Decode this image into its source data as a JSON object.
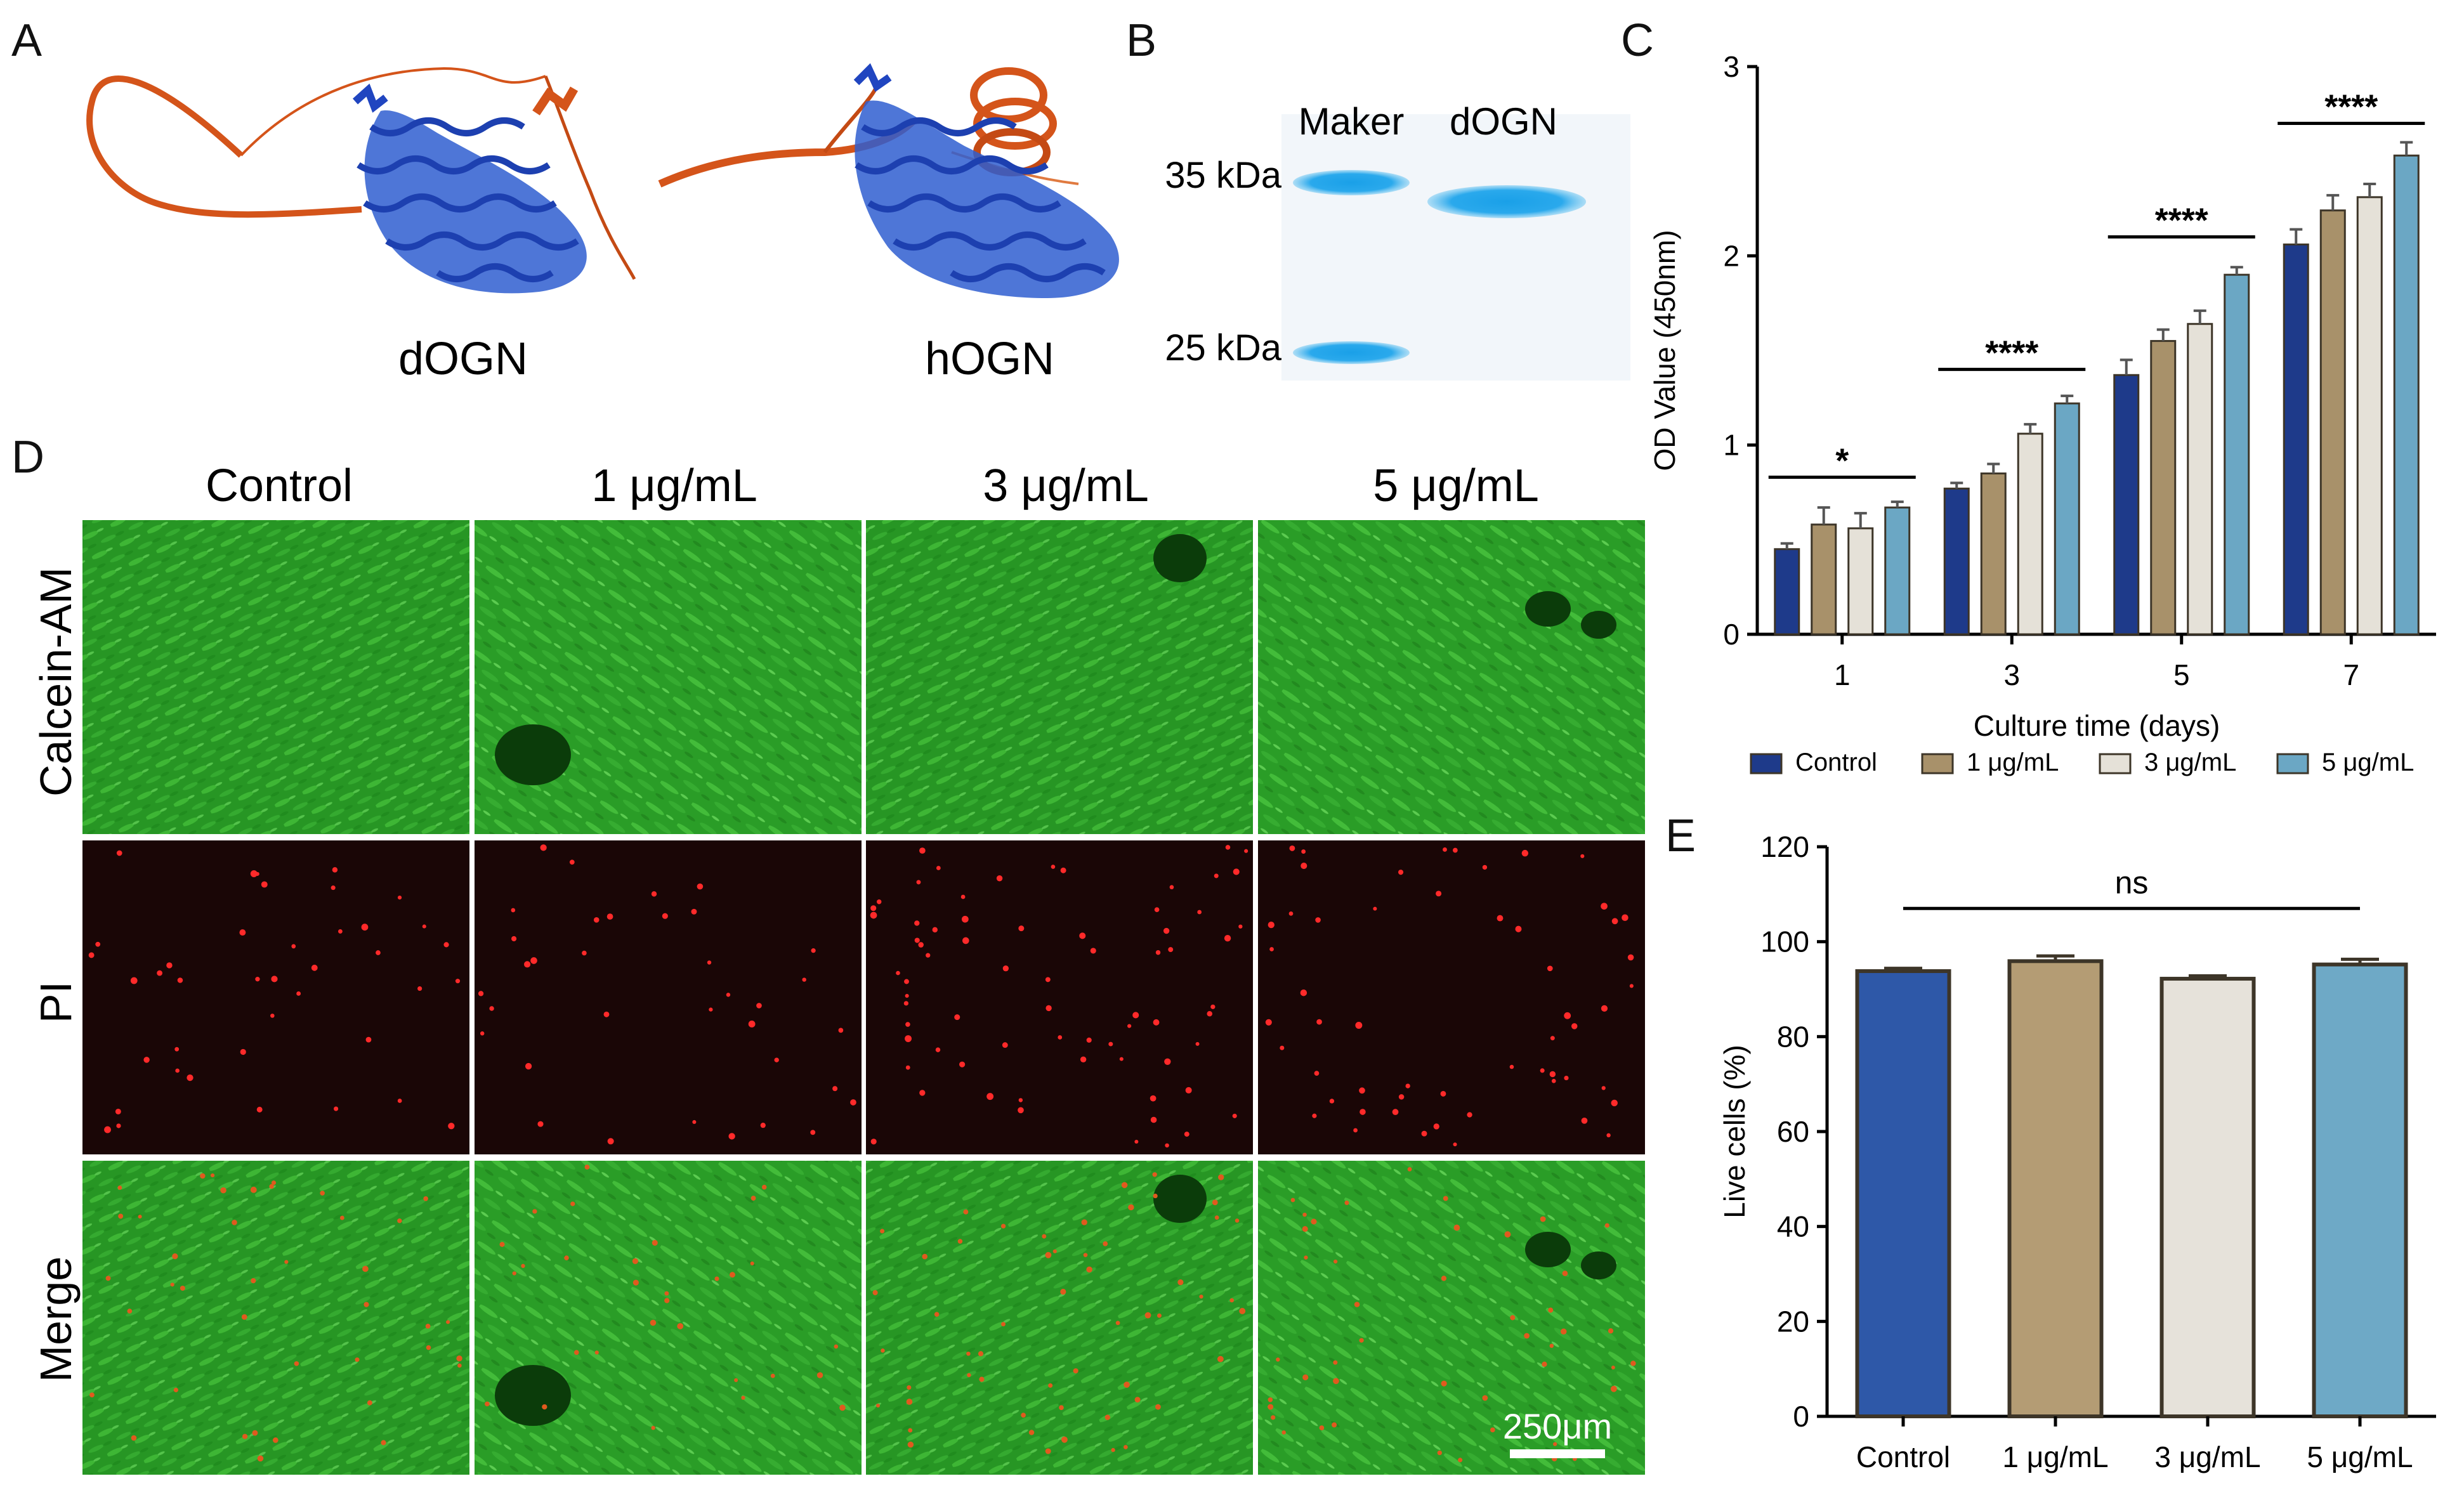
{
  "panels": {
    "A": "A",
    "B": "B",
    "C": "C",
    "D": "D",
    "E": "E"
  },
  "protein_a": {
    "labels": [
      "dOGN",
      "hOGN"
    ]
  },
  "gel_b": {
    "lanes": [
      "Maker",
      "dOGN"
    ],
    "markers": [
      "35 kDa",
      "25 kDa"
    ]
  },
  "micro_d": {
    "columns": [
      "Control",
      "1 μg/mL",
      "3 μg/mL",
      "5 μg/mL"
    ],
    "rows": [
      "Calcein-AM",
      "PI",
      "Merge"
    ],
    "scale_bar": "250μm",
    "colors": {
      "calcein": "#2db82b",
      "pi_bg": "#1a0606",
      "pi_dot": "#ff2a2a"
    }
  },
  "chart_data": [
    {
      "type": "bar",
      "title": "",
      "xlabel": "Culture time (days)",
      "ylabel": "OD Value (450nm)",
      "ylim": [
        0,
        3
      ],
      "yticks": [
        "0",
        "1",
        "2",
        "3"
      ],
      "categories": [
        "1",
        "3",
        "5",
        "7"
      ],
      "series": [
        {
          "name": "Control",
          "color": "#1e3a8a",
          "values": [
            0.45,
            0.77,
            1.37,
            2.06
          ],
          "errors": [
            0.03,
            0.03,
            0.08,
            0.08
          ]
        },
        {
          "name": "1 μg/mL",
          "color": "#a8916a",
          "values": [
            0.58,
            0.85,
            1.55,
            2.24
          ],
          "errors": [
            0.09,
            0.05,
            0.06,
            0.08
          ]
        },
        {
          "name": "3 μg/mL",
          "color": "#e5e1d8",
          "values": [
            0.56,
            1.06,
            1.64,
            2.31
          ],
          "errors": [
            0.08,
            0.05,
            0.07,
            0.07
          ]
        },
        {
          "name": "5 μg/mL",
          "color": "#6ba7c4",
          "values": [
            0.67,
            1.22,
            1.9,
            2.53
          ],
          "errors": [
            0.03,
            0.04,
            0.04,
            0.07
          ]
        }
      ],
      "significance": [
        {
          "group": "1",
          "label": "*",
          "y": 0.83
        },
        {
          "group": "3",
          "label": "****",
          "y": 1.4
        },
        {
          "group": "5",
          "label": "****",
          "y": 2.1
        },
        {
          "group": "7",
          "label": "****",
          "y": 2.7
        }
      ],
      "legend": "bottom"
    },
    {
      "type": "bar",
      "title": "",
      "xlabel": "",
      "ylabel": "Live cells (%)",
      "ylim": [
        0,
        120
      ],
      "yticks": [
        "0",
        "20",
        "40",
        "60",
        "80",
        "100",
        "120"
      ],
      "categories": [
        "Control",
        "1 μg/mL",
        "3 μg/mL",
        "5 μg/mL"
      ],
      "series": [
        {
          "name": "",
          "values": [
            93.8,
            95.9,
            92.2,
            95.2
          ],
          "errors": [
            0.6,
            1.1,
            0.6,
            1.1
          ],
          "colors": [
            "#2e58a8",
            "#b49c74",
            "#e6e2da",
            "#6ea9c6"
          ]
        }
      ],
      "significance": [
        {
          "label": "ns",
          "y": 107
        }
      ]
    }
  ]
}
